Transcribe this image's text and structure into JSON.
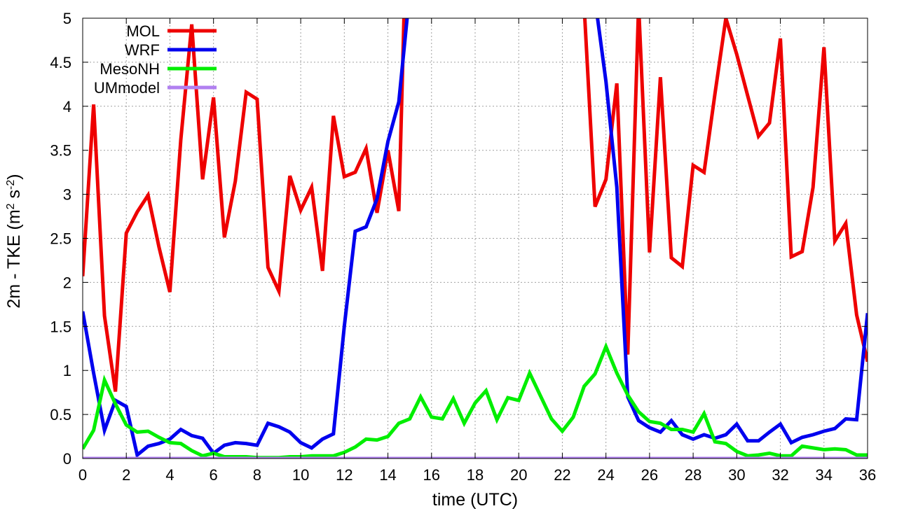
{
  "chart_data": {
    "type": "line",
    "xlabel": "time (UTC)",
    "ylabel": {
      "prefix": "2m - TKE (m",
      "sup1": "2",
      "mid": " s",
      "sup2": "-2",
      "suffix": ")"
    },
    "xlim": [
      0,
      36
    ],
    "ylim": [
      0,
      5
    ],
    "grid": true,
    "legend_position": "top-left",
    "x_ticks": [
      0,
      2,
      4,
      6,
      8,
      10,
      12,
      14,
      16,
      18,
      20,
      22,
      24,
      26,
      28,
      30,
      32,
      34,
      36
    ],
    "x_tick_labels": [
      "0",
      "2",
      "4",
      "6",
      "8",
      "10",
      "12",
      "14",
      "16",
      "18",
      "20",
      "22",
      "24",
      "26",
      "28",
      "30",
      "32",
      "34",
      "36"
    ],
    "y_ticks": [
      0,
      0.5,
      1,
      1.5,
      2,
      2.5,
      3,
      3.5,
      4,
      4.5,
      5
    ],
    "y_tick_labels": [
      "0",
      "0.5",
      "1",
      "1.5",
      "2",
      "2.5",
      "3",
      "3.5",
      "4",
      "4.5",
      "5"
    ],
    "series": [
      {
        "name": "MOL",
        "color": "#ee0000",
        "points": [
          [
            0,
            2.07
          ],
          [
            0.5,
            4.02
          ],
          [
            1,
            1.62
          ],
          [
            1.5,
            0.76
          ],
          [
            2,
            2.56
          ],
          [
            2.5,
            2.8
          ],
          [
            3,
            2.99
          ],
          [
            3.5,
            2.4
          ],
          [
            4,
            1.89
          ],
          [
            4.5,
            3.62
          ],
          [
            5,
            4.93
          ],
          [
            5.5,
            3.17
          ],
          [
            6,
            4.1
          ],
          [
            6.5,
            2.51
          ],
          [
            7,
            3.15
          ],
          [
            7.5,
            4.16
          ],
          [
            8,
            4.08
          ],
          [
            8.5,
            2.17
          ],
          [
            9,
            1.9
          ],
          [
            9.5,
            3.21
          ],
          [
            10,
            2.82
          ],
          [
            10.5,
            3.08
          ],
          [
            11,
            2.13
          ],
          [
            11.5,
            3.89
          ],
          [
            12,
            3.2
          ],
          [
            12.5,
            3.25
          ],
          [
            13,
            3.52
          ],
          [
            13.5,
            2.79
          ],
          [
            14,
            3.5
          ],
          [
            14.5,
            2.81
          ],
          [
            14.8,
            5.6
          ]
        ]
      },
      {
        "name": "MOL",
        "color": "#ee0000",
        "points": [
          [
            22.9,
            5.6
          ],
          [
            23.5,
            2.86
          ],
          [
            24,
            3.17
          ],
          [
            24.5,
            4.26
          ],
          [
            25,
            1.18
          ],
          [
            25.5,
            5.15
          ],
          [
            26,
            2.34
          ],
          [
            26.5,
            4.33
          ],
          [
            27,
            2.28
          ],
          [
            27.5,
            2.18
          ],
          [
            28,
            3.33
          ],
          [
            28.5,
            3.25
          ],
          [
            29,
            4.14
          ],
          [
            29.5,
            5.0
          ],
          [
            30,
            4.59
          ],
          [
            30.5,
            4.12
          ],
          [
            31,
            3.66
          ],
          [
            31.5,
            3.81
          ],
          [
            32,
            4.77
          ],
          [
            32.5,
            2.29
          ],
          [
            33,
            2.35
          ],
          [
            33.5,
            3.08
          ],
          [
            34,
            4.67
          ],
          [
            34.5,
            2.47
          ],
          [
            35,
            2.67
          ],
          [
            35.5,
            1.63
          ],
          [
            36,
            1.1
          ]
        ]
      },
      {
        "name": "WRF",
        "color": "#0000ee",
        "points": [
          [
            0,
            1.67
          ],
          [
            0.5,
            0.97
          ],
          [
            1,
            0.32
          ],
          [
            1.5,
            0.66
          ],
          [
            2,
            0.59
          ],
          [
            2.5,
            0.04
          ],
          [
            3,
            0.14
          ],
          [
            3.5,
            0.17
          ],
          [
            4,
            0.22
          ],
          [
            4.5,
            0.33
          ],
          [
            5,
            0.26
          ],
          [
            5.5,
            0.23
          ],
          [
            6,
            0.06
          ],
          [
            6.5,
            0.15
          ],
          [
            7,
            0.18
          ],
          [
            7.5,
            0.17
          ],
          [
            8,
            0.15
          ],
          [
            8.5,
            0.4
          ],
          [
            9,
            0.36
          ],
          [
            9.5,
            0.3
          ],
          [
            10,
            0.18
          ],
          [
            10.5,
            0.12
          ],
          [
            11,
            0.22
          ],
          [
            11.5,
            0.28
          ],
          [
            12,
            1.5
          ],
          [
            12.5,
            2.58
          ],
          [
            13,
            2.63
          ],
          [
            13.5,
            2.95
          ],
          [
            14,
            3.6
          ],
          [
            14.5,
            4.05
          ],
          [
            15,
            5.3
          ]
        ]
      },
      {
        "name": "WRF",
        "color": "#0000ee",
        "points": [
          [
            23.4,
            5.4
          ],
          [
            24,
            4.28
          ],
          [
            24.5,
            3.08
          ],
          [
            25,
            0.7
          ],
          [
            25.5,
            0.43
          ],
          [
            26,
            0.35
          ],
          [
            26.5,
            0.3
          ],
          [
            27,
            0.43
          ],
          [
            27.5,
            0.27
          ],
          [
            28,
            0.22
          ],
          [
            28.5,
            0.27
          ],
          [
            29,
            0.23
          ],
          [
            29.5,
            0.27
          ],
          [
            30,
            0.39
          ],
          [
            30.5,
            0.2
          ],
          [
            31,
            0.2
          ],
          [
            31.5,
            0.3
          ],
          [
            32,
            0.39
          ],
          [
            32.5,
            0.18
          ],
          [
            33,
            0.24
          ],
          [
            33.5,
            0.27
          ],
          [
            34,
            0.31
          ],
          [
            34.5,
            0.34
          ],
          [
            35,
            0.45
          ],
          [
            35.5,
            0.44
          ],
          [
            36,
            1.65
          ]
        ]
      },
      {
        "name": "MesoNH",
        "color": "#00ee00",
        "points": [
          [
            0,
            0.11
          ],
          [
            0.5,
            0.32
          ],
          [
            1,
            0.89
          ],
          [
            1.5,
            0.62
          ],
          [
            2,
            0.38
          ],
          [
            2.5,
            0.3
          ],
          [
            3,
            0.31
          ],
          [
            3.5,
            0.24
          ],
          [
            4,
            0.18
          ],
          [
            4.5,
            0.17
          ],
          [
            5,
            0.09
          ],
          [
            5.5,
            0.03
          ],
          [
            6,
            0.06
          ],
          [
            6.5,
            0.02
          ],
          [
            7,
            0.02
          ],
          [
            7.5,
            0.02
          ],
          [
            8,
            0.01
          ],
          [
            8.5,
            0.01
          ],
          [
            9,
            0.01
          ],
          [
            9.5,
            0.02
          ],
          [
            10,
            0.02
          ],
          [
            10.5,
            0.03
          ],
          [
            11,
            0.03
          ],
          [
            11.5,
            0.03
          ],
          [
            12,
            0.07
          ],
          [
            12.5,
            0.13
          ],
          [
            13,
            0.22
          ],
          [
            13.5,
            0.21
          ],
          [
            14,
            0.25
          ],
          [
            14.5,
            0.4
          ],
          [
            15,
            0.45
          ],
          [
            15.5,
            0.7
          ],
          [
            16,
            0.47
          ],
          [
            16.5,
            0.45
          ],
          [
            17,
            0.68
          ],
          [
            17.5,
            0.4
          ],
          [
            18,
            0.63
          ],
          [
            18.5,
            0.77
          ],
          [
            19,
            0.44
          ],
          [
            19.5,
            0.69
          ],
          [
            20,
            0.66
          ],
          [
            20.5,
            0.97
          ],
          [
            21,
            0.71
          ],
          [
            21.5,
            0.45
          ],
          [
            22,
            0.31
          ],
          [
            22.5,
            0.47
          ],
          [
            23,
            0.82
          ],
          [
            23.5,
            0.96
          ],
          [
            24,
            1.27
          ],
          [
            24.5,
            0.97
          ],
          [
            25,
            0.72
          ],
          [
            25.5,
            0.53
          ],
          [
            26,
            0.42
          ],
          [
            26.5,
            0.4
          ],
          [
            27,
            0.33
          ],
          [
            27.5,
            0.33
          ],
          [
            28,
            0.3
          ],
          [
            28.5,
            0.51
          ],
          [
            29,
            0.19
          ],
          [
            29.5,
            0.17
          ],
          [
            30,
            0.08
          ],
          [
            30.5,
            0.03
          ],
          [
            31,
            0.04
          ],
          [
            31.5,
            0.06
          ],
          [
            32,
            0.03
          ],
          [
            32.5,
            0.03
          ],
          [
            33,
            0.14
          ],
          [
            33.5,
            0.12
          ],
          [
            34,
            0.1
          ],
          [
            34.5,
            0.11
          ],
          [
            35,
            0.1
          ],
          [
            35.5,
            0.04
          ],
          [
            36,
            0.04
          ]
        ]
      },
      {
        "name": "UMmodel",
        "color": "#b180f0",
        "points": [
          [
            0,
            0.0
          ],
          [
            36,
            0.0
          ]
        ]
      }
    ],
    "legend": [
      {
        "name": "MOL",
        "color": "#ee0000"
      },
      {
        "name": "WRF",
        "color": "#0000ee"
      },
      {
        "name": "MesoNH",
        "color": "#00ee00"
      },
      {
        "name": "UMmodel",
        "color": "#b180f0"
      }
    ]
  }
}
